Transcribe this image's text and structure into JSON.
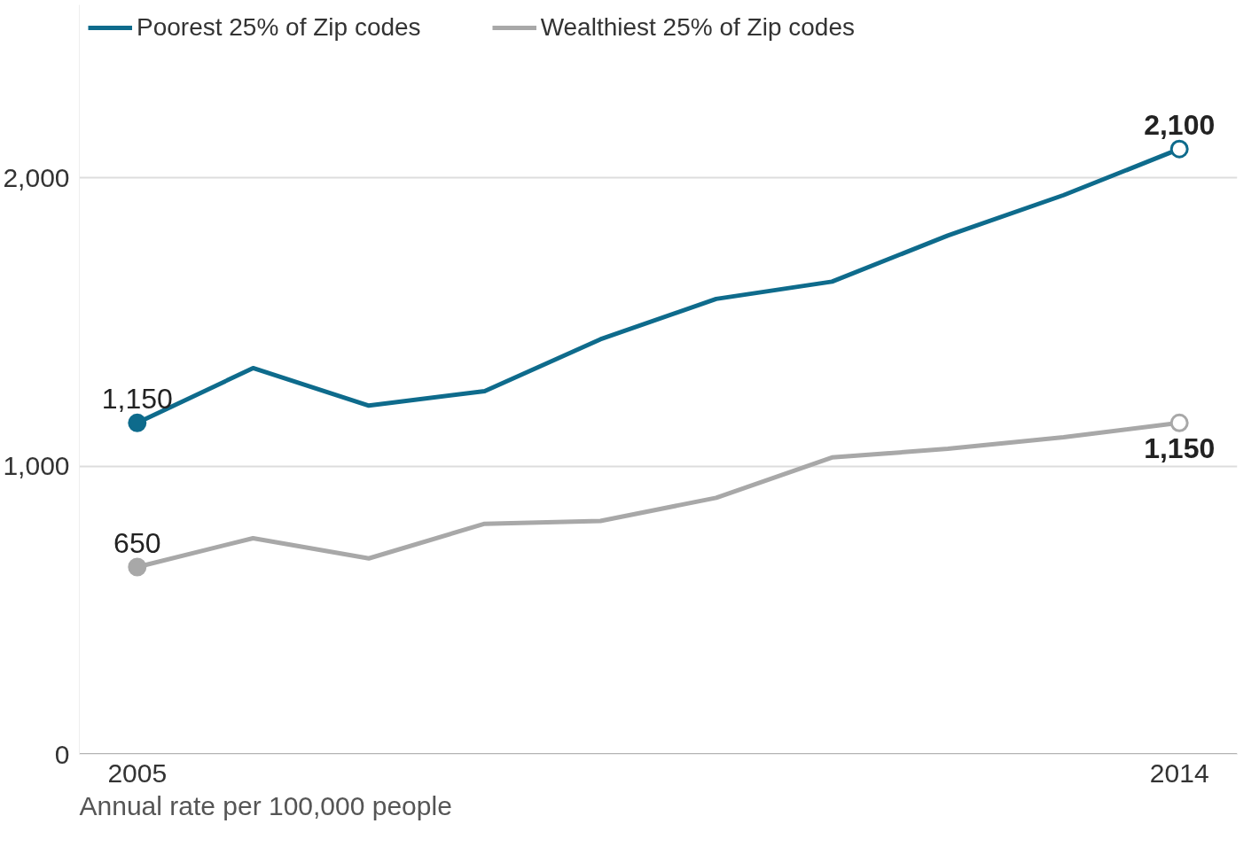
{
  "chart_data": {
    "type": "line",
    "x": [
      2005,
      2006,
      2007,
      2008,
      2009,
      2010,
      2011,
      2012,
      2013,
      2014
    ],
    "series": [
      {
        "name": "Poorest 25% of Zip codes",
        "color": "#0e6b8c",
        "values": [
          1150,
          1340,
          1210,
          1260,
          1440,
          1580,
          1640,
          1800,
          1940,
          2100
        ],
        "value_labels": [
          "1,150",
          null,
          null,
          null,
          null,
          null,
          null,
          null,
          null,
          "2,100"
        ]
      },
      {
        "name": "Wealthiest 25% of Zip codes",
        "color": "#a8a8a8",
        "values": [
          650,
          750,
          680,
          800,
          810,
          890,
          1030,
          1060,
          1100,
          1150
        ],
        "value_labels": [
          "650",
          null,
          null,
          null,
          null,
          null,
          null,
          null,
          null,
          "1,150"
        ]
      }
    ],
    "xlim": [
      2004.5,
      2014.5
    ],
    "xticks": [
      2005,
      2014
    ],
    "ylim": [
      0,
      2600
    ],
    "yticks": [
      0,
      {
        "value": 1000,
        "label": "1,000"
      },
      {
        "value": 2000,
        "label": "2,000"
      }
    ],
    "grid": "y",
    "legend": "top left",
    "line_style": "solid",
    "annotations": [
      "Annual rate per 100,000 people"
    ]
  }
}
